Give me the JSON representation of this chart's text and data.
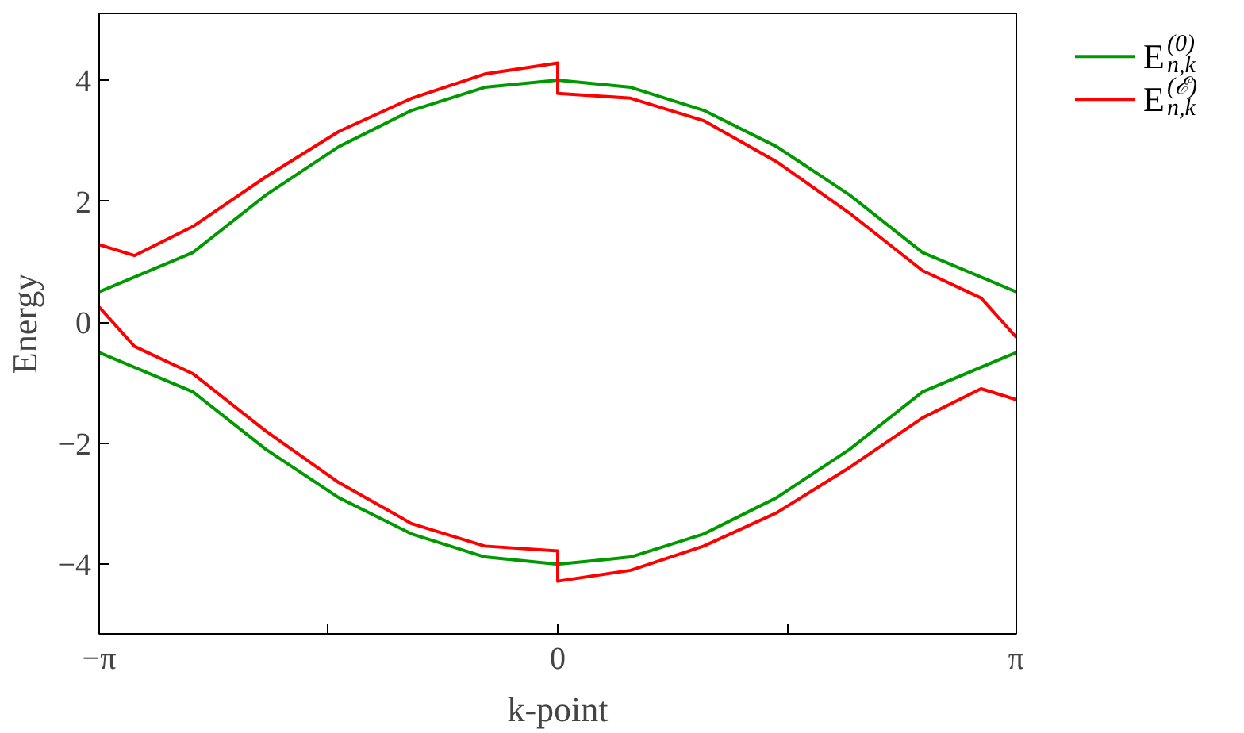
{
  "chart_data": {
    "type": "line",
    "xlabel": "k-point",
    "ylabel": "Energy",
    "xlim": [
      -3.14159,
      3.14159
    ],
    "ylim": [
      -5.15,
      5.1
    ],
    "xticks": [
      {
        "value": -3.14159,
        "label": "−π"
      },
      {
        "value": -1.5708,
        "label": null
      },
      {
        "value": 0,
        "label": "0"
      },
      {
        "value": 1.5708,
        "label": null
      },
      {
        "value": 3.14159,
        "label": "π"
      }
    ],
    "yticks": [
      {
        "value": -4,
        "label": "−4"
      },
      {
        "value": -2,
        "label": "−2"
      },
      0,
      2,
      4
    ],
    "grid": false,
    "legend": "top right",
    "marker": "none",
    "line_style": "solid",
    "series": [
      {
        "name": "E$_{n,k}$$^{(0)}$",
        "color": "#009900",
        "x": [
          -3.14159,
          -2.5,
          -2,
          -1.5,
          -1,
          -0.5,
          0,
          0.5,
          1,
          1.5,
          2,
          2.5,
          3.14159
        ],
        "values": [
          0.5,
          1.15,
          2.1,
          2.9,
          3.5,
          3.88,
          4.0,
          3.88,
          3.5,
          2.9,
          2.1,
          1.15,
          0.5
        ]
      },
      {
        "color": "#009900",
        "x": [
          -3.14159,
          -2.5,
          -2,
          -1.5,
          -1,
          -0.5,
          0,
          0.5,
          1,
          1.5,
          2,
          2.5,
          3.14159
        ],
        "values": [
          -0.5,
          -1.15,
          -2.1,
          -2.9,
          -3.5,
          -3.88,
          -4.0,
          -3.88,
          -3.5,
          -2.9,
          -2.1,
          -1.15,
          -0.5
        ]
      },
      {
        "name": "E$_{n,k}$$^{(ℰ)}$",
        "color": "#ff0000",
        "x": [
          -3.14159,
          -2.9,
          -2.5,
          -2,
          -1.5,
          -1,
          -0.5,
          0,
          0,
          0.5,
          1,
          1.5,
          2,
          2.5,
          2.9,
          3.14159
        ],
        "values": [
          1.28,
          1.1,
          1.58,
          2.4,
          3.15,
          3.7,
          4.1,
          4.28,
          3.78,
          3.7,
          3.33,
          2.65,
          1.8,
          0.85,
          0.4,
          -0.25
        ]
      },
      {
        "color": "#ff0000",
        "x": [
          -3.14159,
          -2.9,
          -2.5,
          -2,
          -1.5,
          -1,
          -0.5,
          0,
          0,
          0.5,
          1,
          1.5,
          2,
          2.5,
          2.9,
          3.14159
        ],
        "values": [
          0.25,
          -0.4,
          -0.85,
          -1.8,
          -2.65,
          -3.33,
          -3.7,
          -3.78,
          -4.28,
          -4.1,
          -3.7,
          -3.15,
          -2.4,
          -1.58,
          -1.1,
          -1.28
        ]
      }
    ]
  }
}
